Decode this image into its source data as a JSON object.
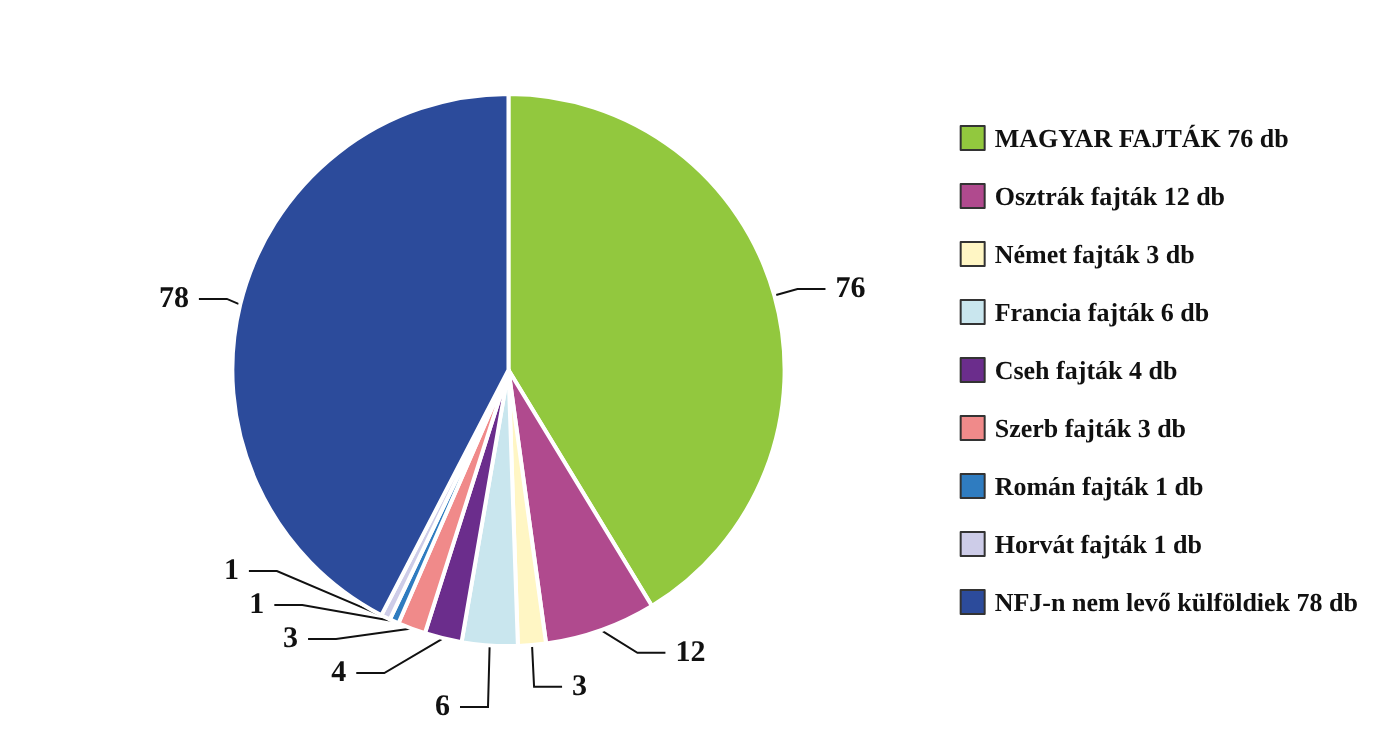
{
  "chart_data": {
    "type": "pie",
    "categories": [
      "MAGYAR FAJTÁK 76 db",
      "Osztrák fajták 12 db",
      "Német fajták 3 db",
      "Francia fajták 6 db",
      "Cseh fajták 4 db",
      "Szerb fajták 3 db",
      "Román fajták 1 db",
      "Horvát fajták 1 db",
      "NFJ-n nem levő külföldiek 78 db"
    ],
    "values": [
      76,
      12,
      3,
      6,
      4,
      3,
      1,
      1,
      78
    ],
    "colors": [
      "#92c83e",
      "#b04a8e",
      "#fff6c4",
      "#c9e6ee",
      "#6b2d8c",
      "#f08a8a",
      "#2f7cc0",
      "#cdcce8",
      "#2c4b9b"
    ],
    "data_labels": true,
    "legend": "right"
  }
}
